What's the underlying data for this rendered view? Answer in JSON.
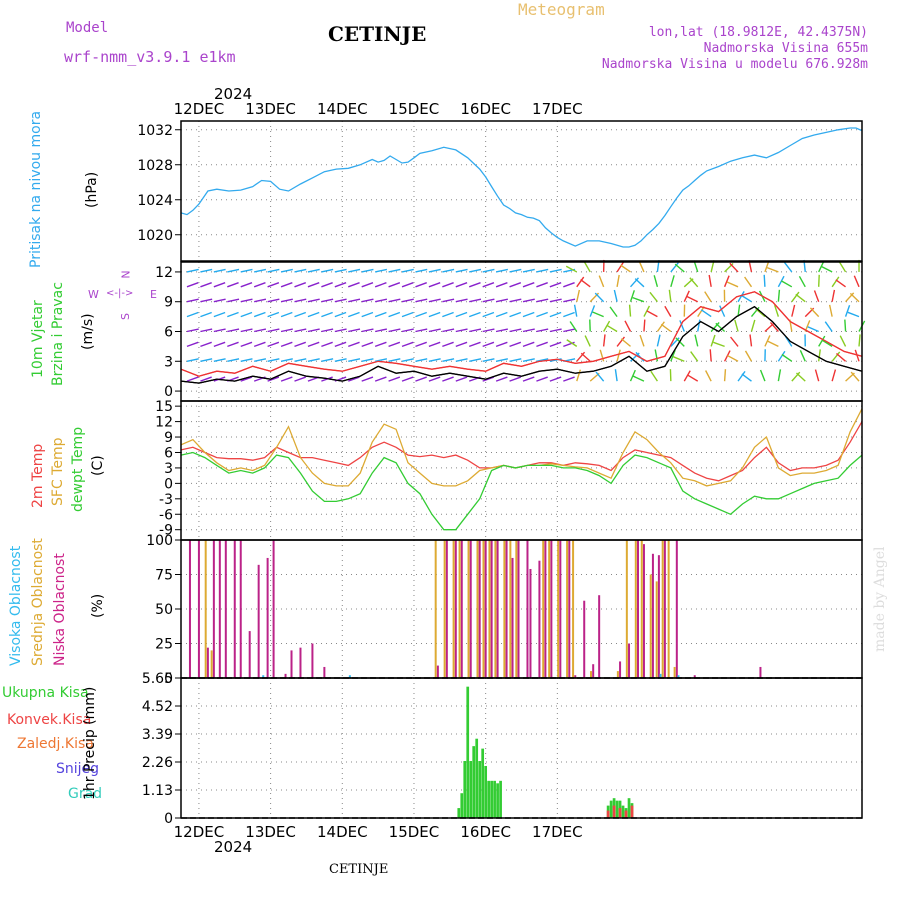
{
  "header": {
    "model_label": "Model",
    "model_name": "wrf-nmm_v3.9.1  e1km",
    "title": "CETINJE",
    "meteogram": "Meteogram",
    "lonlat": "lon,lat (18.9812E, 42.4375N)",
    "altitude": "Nadmorska Visina 655m",
    "model_altitude": "Nadmorska Visina u modelu 676.928m",
    "top_year": "2024",
    "bottom_year": "2024",
    "footer_station": "CETINJE",
    "credit": "made by Angel"
  },
  "colors": {
    "pressure": "#33aaee",
    "wind_primary": "#8822cc",
    "wind_secondary": "#22aaee",
    "gust": "#ee3333",
    "temp2m": "#ee4444",
    "sfc_temp": "#ddaa33",
    "dewpt": "#33cc33",
    "high_cloud": "#33bbee",
    "mid_cloud": "#ddaa33",
    "low_cloud": "#bb2288",
    "total_precip": "#33cc33",
    "conv_precip": "#ee4444",
    "freezing": "#ee7733",
    "snow": "#5544dd",
    "graupel": "#33ccbb"
  },
  "chart_data": [
    {
      "id": "pressure",
      "type": "line",
      "labels": [
        "Pritisak na nivou mora",
        "(hPa)"
      ],
      "ylim": [
        1017,
        1033
      ],
      "yticks": [
        1020,
        1024,
        1028,
        1032
      ],
      "x_categories": [
        "12DEC",
        "13DEC",
        "14DEC",
        "15DEC",
        "16DEC",
        "17DEC"
      ],
      "series": [
        {
          "x": [
            0,
            2,
            4,
            6,
            9,
            12,
            16,
            20,
            24,
            27,
            30,
            33,
            36,
            40,
            44,
            48,
            52,
            56,
            60,
            64,
            66,
            68,
            70,
            72,
            74,
            76,
            78,
            80,
            84,
            88,
            92,
            96,
            100,
            102,
            104,
            106,
            108,
            110,
            112,
            114,
            116,
            118,
            120,
            122,
            124,
            126,
            128,
            132,
            136,
            140,
            144,
            148,
            150,
            152,
            154,
            156,
            158,
            160,
            162,
            164,
            166,
            168,
            170,
            172,
            174,
            176,
            180,
            184,
            188,
            192,
            196,
            200,
            204,
            208,
            212,
            216,
            220,
            224,
            226,
            228
          ],
          "y": [
            1022.5,
            1022.3,
            1022.8,
            1023.5,
            1025.0,
            1025.2,
            1025.0,
            1025.1,
            1025.5,
            1026.2,
            1026.1,
            1025.2,
            1025.0,
            1025.8,
            1026.5,
            1027.2,
            1027.5,
            1027.6,
            1028.0,
            1028.6,
            1028.3,
            1028.5,
            1029.0,
            1028.6,
            1028.2,
            1028.3,
            1028.8,
            1029.3,
            1029.6,
            1030.0,
            1029.7,
            1028.8,
            1027.5,
            1026.6,
            1025.5,
            1024.4,
            1023.4,
            1023.0,
            1022.5,
            1022.3,
            1022.0,
            1021.9,
            1021.6,
            1020.8,
            1020.2,
            1019.7,
            1019.3,
            1018.7,
            1019.3,
            1019.3,
            1019.0,
            1018.6,
            1018.6,
            1018.8,
            1019.3,
            1020.0,
            1020.6,
            1021.3,
            1022.2,
            1023.2,
            1024.2,
            1025.1,
            1025.6,
            1026.2,
            1026.8,
            1027.3,
            1027.8,
            1028.4,
            1028.8,
            1029.1,
            1028.8,
            1029.4,
            1030.2,
            1031.0,
            1031.4,
            1031.7,
            1032.0,
            1032.2,
            1032.2,
            1031.9
          ]
        }
      ]
    },
    {
      "id": "wind",
      "type": "line",
      "labels": [
        "10m Vjetar",
        "Brzina i Pravac",
        "(m/s)"
      ],
      "compass": {
        "n": "N",
        "s": "S",
        "e": "E",
        "w": "W"
      },
      "ylim": [
        -1,
        13
      ],
      "yticks": [
        0,
        3,
        6,
        9,
        12
      ],
      "series": [
        {
          "name": "speed",
          "x": [
            0,
            6,
            12,
            18,
            24,
            30,
            36,
            42,
            48,
            54,
            60,
            66,
            72,
            78,
            84,
            90,
            96,
            102,
            108,
            114,
            120,
            126,
            132,
            138,
            144,
            150,
            156,
            162,
            168,
            174,
            180,
            186,
            192,
            198,
            204,
            210,
            216,
            222,
            228
          ],
          "y": [
            1.0,
            0.8,
            1.2,
            1.0,
            1.5,
            1.2,
            2.0,
            1.5,
            1.3,
            1.0,
            1.5,
            2.5,
            1.8,
            2.0,
            1.5,
            1.8,
            1.5,
            1.2,
            1.8,
            1.5,
            2.0,
            2.2,
            1.8,
            2.0,
            2.5,
            3.5,
            2.0,
            2.5,
            5.5,
            7.0,
            6.0,
            7.5,
            8.5,
            7.0,
            5.0,
            4.0,
            3.0,
            2.5,
            2.0
          ]
        },
        {
          "name": "gust",
          "x": [
            0,
            6,
            12,
            18,
            24,
            30,
            36,
            42,
            48,
            54,
            60,
            66,
            72,
            78,
            84,
            90,
            96,
            102,
            108,
            114,
            120,
            126,
            132,
            138,
            144,
            150,
            156,
            162,
            168,
            174,
            180,
            186,
            192,
            198,
            204,
            210,
            216,
            222,
            228
          ],
          "y": [
            2.2,
            1.5,
            2.0,
            1.8,
            2.5,
            2.0,
            2.8,
            2.5,
            2.2,
            2.0,
            2.5,
            3.0,
            2.8,
            2.5,
            2.2,
            2.5,
            2.2,
            2.0,
            2.8,
            2.5,
            3.0,
            3.2,
            2.8,
            3.0,
            3.5,
            4.0,
            3.0,
            3.5,
            7.0,
            8.5,
            8.0,
            9.5,
            10.0,
            9.0,
            7.0,
            6.0,
            5.0,
            4.0,
            3.5
          ]
        }
      ]
    },
    {
      "id": "temperature",
      "type": "line",
      "labels": [
        "2m Temp",
        "SFC Temp",
        "dewpt Temp",
        "(C)"
      ],
      "ylim": [
        -11,
        16
      ],
      "yticks": [
        -9,
        -6,
        -3,
        0,
        3,
        6,
        9,
        12,
        15
      ],
      "series": [
        {
          "name": "2m Temp",
          "x": [
            0,
            4,
            8,
            12,
            16,
            20,
            24,
            28,
            32,
            36,
            40,
            44,
            48,
            52,
            56,
            60,
            64,
            68,
            72,
            76,
            80,
            84,
            88,
            92,
            96,
            100,
            104,
            108,
            112,
            116,
            120,
            124,
            128,
            132,
            136,
            140,
            144,
            148,
            152,
            156,
            160,
            164,
            168,
            172,
            176,
            180,
            184,
            188,
            192,
            196,
            200,
            204,
            208,
            212,
            216,
            220,
            224,
            228
          ],
          "y": [
            6.5,
            7.0,
            6.0,
            5.0,
            4.8,
            4.8,
            4.5,
            5.0,
            7.0,
            6.0,
            5.0,
            5.0,
            4.5,
            4.0,
            3.5,
            5.0,
            7.0,
            8.0,
            7.0,
            5.5,
            5.2,
            5.5,
            5.0,
            5.5,
            4.5,
            3.0,
            3.0,
            3.5,
            3.0,
            3.5,
            4.0,
            4.0,
            3.5,
            4.0,
            3.8,
            3.5,
            2.5,
            5.0,
            6.5,
            6.0,
            5.5,
            5.0,
            3.5,
            2.0,
            1.0,
            0.5,
            1.5,
            2.5,
            5.0,
            7.0,
            4.0,
            2.5,
            3.0,
            3.0,
            3.5,
            4.5,
            8.0,
            12.0
          ]
        },
        {
          "name": "SFC Temp",
          "x": [
            0,
            4,
            8,
            12,
            16,
            20,
            24,
            28,
            32,
            36,
            40,
            44,
            48,
            52,
            56,
            60,
            64,
            68,
            72,
            76,
            80,
            84,
            88,
            92,
            96,
            100,
            104,
            108,
            112,
            116,
            120,
            124,
            128,
            132,
            136,
            140,
            144,
            148,
            152,
            156,
            160,
            164,
            168,
            172,
            176,
            180,
            184,
            188,
            192,
            196,
            200,
            204,
            208,
            212,
            216,
            220,
            224,
            228
          ],
          "y": [
            7.5,
            8.5,
            6.0,
            4.0,
            2.5,
            3.0,
            2.5,
            3.5,
            7.0,
            11.0,
            5.0,
            2.0,
            0.0,
            -0.5,
            -0.5,
            2.0,
            8.0,
            11.5,
            10.5,
            4.0,
            2.0,
            0.0,
            -0.5,
            -0.5,
            0.5,
            2.5,
            3.0,
            3.5,
            3.0,
            3.5,
            3.5,
            3.8,
            3.5,
            3.2,
            3.0,
            2.0,
            1.0,
            6.0,
            10.0,
            8.5,
            6.0,
            4.0,
            1.0,
            0.5,
            -0.5,
            0.0,
            0.5,
            3.0,
            7.0,
            9.0,
            3.0,
            1.5,
            2.0,
            2.0,
            2.5,
            3.5,
            10.0,
            14.5
          ]
        },
        {
          "name": "dewpt Temp",
          "x": [
            0,
            4,
            8,
            12,
            16,
            20,
            24,
            28,
            32,
            36,
            40,
            44,
            48,
            52,
            56,
            60,
            64,
            68,
            72,
            76,
            80,
            84,
            88,
            92,
            96,
            100,
            104,
            108,
            112,
            116,
            120,
            124,
            128,
            132,
            136,
            140,
            144,
            148,
            152,
            156,
            160,
            164,
            168,
            172,
            176,
            180,
            184,
            188,
            192,
            196,
            200,
            204,
            208,
            212,
            216,
            220,
            224,
            228
          ],
          "y": [
            5.5,
            6.0,
            5.0,
            3.5,
            2.0,
            2.5,
            2.0,
            3.0,
            5.5,
            5.0,
            2.0,
            -1.5,
            -3.5,
            -3.5,
            -3.0,
            -2.0,
            2.0,
            5.0,
            4.0,
            0.0,
            -2.0,
            -6.0,
            -9.0,
            -9.0,
            -6.0,
            -3.0,
            2.5,
            3.5,
            3.0,
            3.5,
            3.5,
            3.5,
            3.0,
            3.0,
            2.5,
            1.5,
            0.0,
            3.5,
            5.5,
            5.0,
            4.0,
            3.0,
            -1.5,
            -3.0,
            -4.0,
            -5.0,
            -6.0,
            -4.0,
            -2.5,
            -3.0,
            -3.0,
            -2.0,
            -1.0,
            0.0,
            0.5,
            1.0,
            3.5,
            5.5
          ]
        }
      ]
    },
    {
      "id": "cloud",
      "type": "bar",
      "labels": [
        "Visoka Oblacnost",
        "Srednja Oblacnost",
        "Niska Oblacnost",
        "(%)"
      ],
      "ylim": [
        0,
        100
      ],
      "yticks": [
        0,
        25,
        50,
        75,
        100
      ],
      "series": [
        {
          "name": "Niska Oblacnost",
          "x": [
            3,
            6,
            9,
            11,
            13,
            15,
            18,
            20,
            23,
            26,
            29,
            31,
            35,
            37,
            40,
            44,
            48,
            86,
            89,
            92,
            94,
            97,
            100,
            102,
            104,
            106,
            109,
            111,
            113,
            116,
            117,
            120,
            122,
            124,
            127,
            130,
            132,
            135,
            138,
            140,
            147,
            150,
            153,
            155,
            158,
            160,
            162,
            166,
            172,
            194
          ],
          "y": [
            100,
            100,
            22,
            100,
            100,
            100,
            100,
            100,
            34,
            82,
            87,
            100,
            3,
            20,
            22,
            25,
            8,
            9,
            100,
            100,
            100,
            100,
            100,
            100,
            100,
            100,
            100,
            87,
            100,
            100,
            79,
            85,
            100,
            100,
            100,
            100,
            2,
            56,
            10,
            60,
            12,
            25,
            100,
            97,
            90,
            89,
            100,
            100,
            2,
            8
          ]
        },
        {
          "name": "Srednja Oblacnost",
          "x": [
            8,
            10,
            85,
            88,
            91,
            93,
            96,
            99,
            101,
            103,
            105,
            108,
            110,
            112,
            121,
            123,
            126,
            129,
            131,
            137,
            146,
            149,
            152,
            154,
            157,
            159,
            161,
            163,
            165
          ],
          "y": [
            100,
            20,
            100,
            100,
            100,
            100,
            100,
            100,
            100,
            100,
            100,
            100,
            100,
            100,
            100,
            100,
            100,
            100,
            100,
            5,
            5,
            100,
            100,
            100,
            75,
            70,
            100,
            100,
            8
          ]
        },
        {
          "name": "Visoka Oblacnost",
          "x": [
            27,
            56,
            160,
            166
          ],
          "y": [
            2,
            2,
            3,
            2
          ]
        }
      ]
    },
    {
      "id": "precip",
      "type": "bar",
      "labels": [
        "Ukupna Kisa",
        "Konvek.Kisa",
        "Zaledj.Kisa",
        "Snijeg",
        "Grad",
        "1hr Precip (mm)"
      ],
      "ylim": [
        0,
        5.65
      ],
      "yticks": [
        0,
        1.13,
        2.26,
        3.39,
        4.52,
        5.65
      ],
      "series": [
        {
          "name": "Ukupna Kisa",
          "x": [
            93,
            94,
            95,
            96,
            97,
            98,
            99,
            100,
            101,
            102,
            103,
            104,
            105,
            106,
            107,
            143,
            144,
            145,
            146,
            147,
            148,
            149,
            150,
            151
          ],
          "y": [
            0.4,
            1.0,
            2.3,
            5.3,
            2.3,
            2.9,
            3.2,
            2.3,
            2.8,
            2.1,
            1.5,
            1.5,
            1.5,
            1.4,
            1.5,
            0.5,
            0.7,
            0.8,
            0.7,
            0.7,
            0.5,
            0.4,
            0.8,
            0.6
          ]
        },
        {
          "name": "Konvek.Kisa",
          "x": [
            143,
            145,
            147,
            149,
            151
          ],
          "y": [
            0.3,
            0.5,
            0.4,
            0.3,
            0.5
          ]
        }
      ]
    }
  ]
}
